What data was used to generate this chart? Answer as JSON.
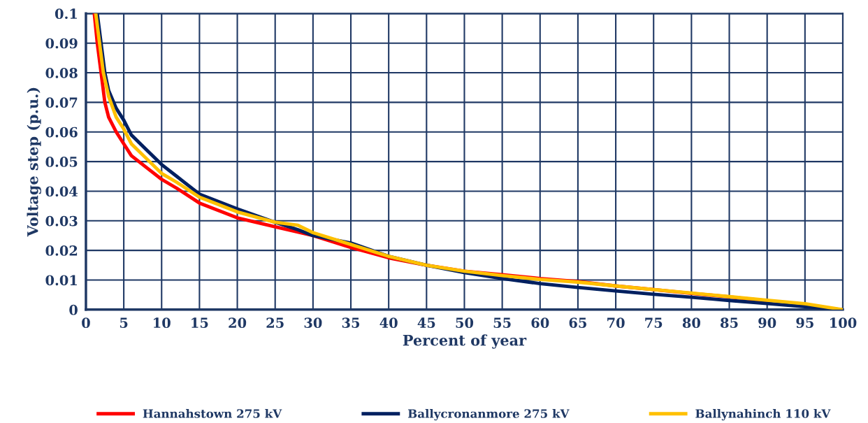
{
  "chart_data": {
    "type": "line",
    "xlabel": "Percent of year",
    "ylabel": "Voltage step (p.u.)",
    "xlim": [
      0,
      100
    ],
    "xticks": [
      0,
      5,
      10,
      15,
      20,
      25,
      30,
      35,
      40,
      45,
      50,
      55,
      60,
      65,
      70,
      75,
      80,
      85,
      90,
      95,
      100
    ],
    "ylim": [
      0,
      0.1
    ],
    "yticks": [
      0,
      0.01,
      0.02,
      0.03,
      0.04,
      0.05,
      0.06,
      0.07,
      0.08,
      0.09,
      0.1
    ],
    "grid": true,
    "legend": "bottom",
    "marker": "none",
    "line_style": "solid",
    "series": [
      {
        "name": "Hannahstown 275 kV",
        "color": "#ff0000",
        "x": [
          1.1,
          1.5,
          2,
          2.5,
          3,
          4,
          5,
          6,
          8,
          10,
          12,
          15,
          20,
          25,
          30,
          35,
          40,
          45,
          50,
          55,
          60,
          65,
          70,
          75,
          80,
          85,
          90
        ],
        "values": [
          0.1,
          0.09,
          0.08,
          0.07,
          0.065,
          0.06,
          0.056,
          0.052,
          0.048,
          0.044,
          0.041,
          0.036,
          0.031,
          0.028,
          0.025,
          0.021,
          0.0175,
          0.015,
          0.013,
          0.0118,
          0.0105,
          0.0095,
          0.008,
          0.0068,
          0.0055,
          0.0043,
          0.003
        ]
      },
      {
        "name": "Ballycronanmore 275 kV",
        "color": "#002060",
        "x": [
          1.5,
          2,
          2.5,
          3,
          4,
          5,
          6,
          8,
          10,
          12,
          15,
          20,
          25,
          28,
          30,
          35,
          40,
          45,
          50,
          55,
          60,
          65,
          70,
          75,
          80,
          85,
          90,
          95,
          100
        ],
        "values": [
          0.1,
          0.09,
          0.08,
          0.074,
          0.068,
          0.064,
          0.059,
          0.054,
          0.049,
          0.045,
          0.039,
          0.034,
          0.0295,
          0.027,
          0.025,
          0.0225,
          0.018,
          0.015,
          0.0125,
          0.0105,
          0.0088,
          0.0075,
          0.0063,
          0.0052,
          0.0042,
          0.0031,
          0.0021,
          0.001,
          0
        ]
      },
      {
        "name": "Ballynahinch 110 kV",
        "color": "#ffc000",
        "x": [
          1.3,
          1.8,
          2.3,
          3,
          4,
          5,
          6,
          8,
          10,
          12,
          15,
          20,
          25,
          28,
          30,
          35,
          40,
          45,
          50,
          55,
          60,
          65,
          70,
          75,
          80,
          85,
          90,
          95,
          100
        ],
        "values": [
          0.1,
          0.09,
          0.08,
          0.072,
          0.065,
          0.061,
          0.056,
          0.051,
          0.046,
          0.043,
          0.038,
          0.033,
          0.0295,
          0.0285,
          0.026,
          0.022,
          0.018,
          0.015,
          0.013,
          0.0115,
          0.0102,
          0.0093,
          0.008,
          0.0068,
          0.0056,
          0.0044,
          0.0032,
          0.002,
          0
        ]
      }
    ]
  }
}
